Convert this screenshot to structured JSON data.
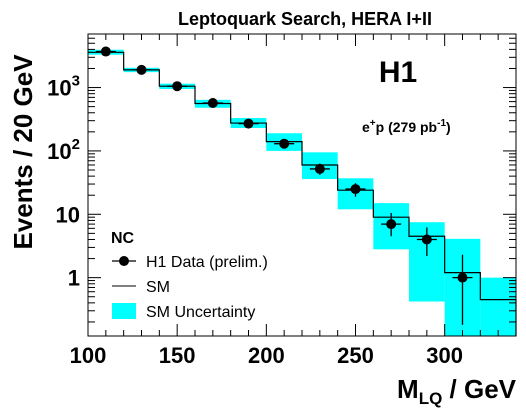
{
  "chart_data": {
    "type": "scatter",
    "title": "Leptoquark Search, HERA I+II",
    "xlabel_main": "M",
    "xlabel_sub": "LQ",
    "xlabel_unit": " / GeV",
    "ylabel": "Events / 20 GeV",
    "experiment": "H1",
    "dataset_pre": "e",
    "dataset_charge": "+",
    "dataset_mid": "p (279 pb",
    "dataset_exp": "-1",
    "dataset_post": ")",
    "xlim": [
      100,
      340
    ],
    "ylim": [
      0.12,
      7000
    ],
    "yscale": "log",
    "x_ticks": [
      100,
      150,
      200,
      250,
      300
    ],
    "y_ticks": [
      {
        "v": 1,
        "mant": "1",
        "exp": ""
      },
      {
        "v": 10,
        "mant": "10",
        "exp": ""
      },
      {
        "v": 100,
        "mant": "10",
        "exp": "2"
      },
      {
        "v": 1000,
        "mant": "10",
        "exp": "3"
      }
    ],
    "bin_edges": [
      100,
      120,
      140,
      160,
      180,
      200,
      220,
      240,
      260,
      280,
      300,
      320,
      340
    ],
    "sm": [
      3600,
      1900,
      1050,
      560,
      275,
      140,
      60,
      24,
      9,
      4.5,
      1.2,
      0.45
    ],
    "sm_band_low": [
      3300,
      1750,
      950,
      480,
      230,
      100,
      36,
      12,
      2.8,
      0.42,
      0.12,
      0.12
    ],
    "sm_band_high": [
      3950,
      2050,
      1150,
      640,
      330,
      190,
      95,
      37,
      15,
      7.5,
      4.1,
      1.0
    ],
    "data": [
      {
        "x": 110,
        "y": 3700,
        "lo": 3580,
        "hi": 3820
      },
      {
        "x": 130,
        "y": 1900,
        "lo": 1815,
        "hi": 1985
      },
      {
        "x": 150,
        "y": 1050,
        "lo": 985,
        "hi": 1115
      },
      {
        "x": 170,
        "y": 570,
        "lo": 523,
        "hi": 617
      },
      {
        "x": 190,
        "y": 270,
        "lo": 238,
        "hi": 302
      },
      {
        "x": 210,
        "y": 130,
        "lo": 109,
        "hi": 151
      },
      {
        "x": 230,
        "y": 52,
        "lo": 42,
        "hi": 63
      },
      {
        "x": 250,
        "y": 25,
        "lo": 19,
        "hi": 31
      },
      {
        "x": 270,
        "y": 7,
        "lo": 4.5,
        "hi": 10.5
      },
      {
        "x": 290,
        "y": 4,
        "lo": 2.2,
        "hi": 6.2
      },
      {
        "x": 310,
        "y": 1,
        "lo": 0.18,
        "hi": 2.3
      }
    ],
    "legend": {
      "header": "NC",
      "entries": [
        {
          "label": "H1 Data (prelim.)",
          "style": "marker"
        },
        {
          "label": "SM",
          "style": "line"
        },
        {
          "label": "SM Uncertainty",
          "style": "band"
        }
      ]
    },
    "colors": {
      "band": "#00ffff",
      "line": "#000000",
      "marker": "#000000"
    }
  }
}
